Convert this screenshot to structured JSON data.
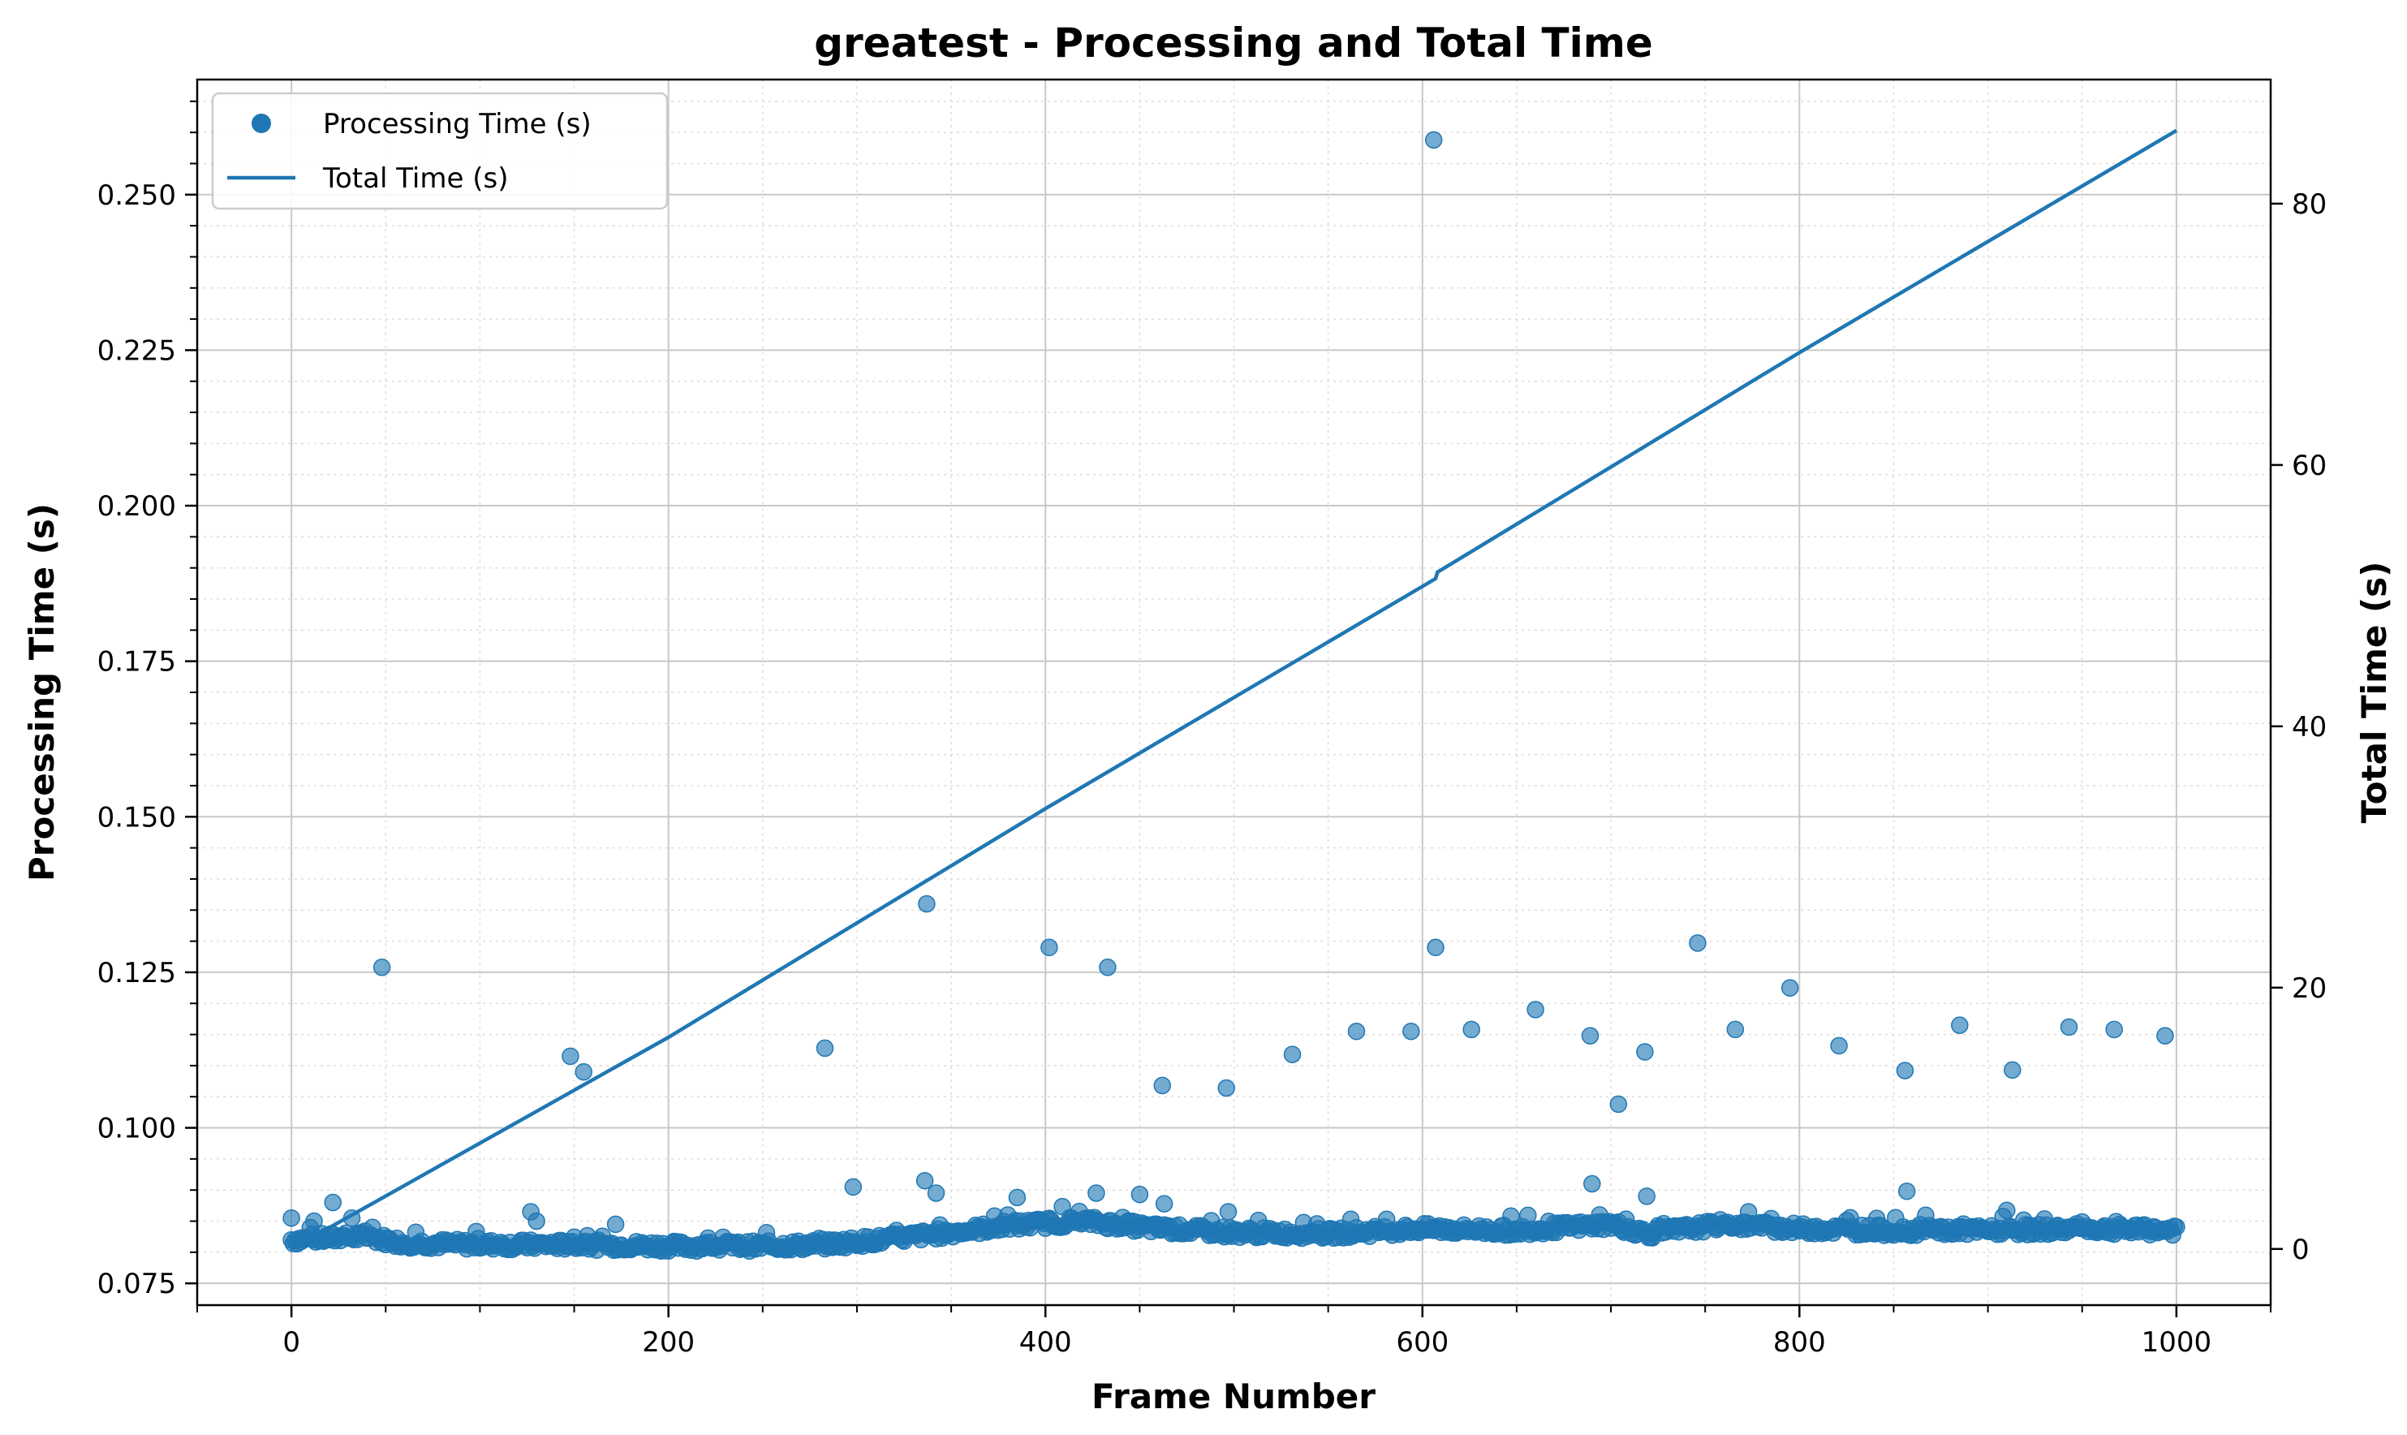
{
  "chart_data": {
    "type": "scatter",
    "title": "greatest - Processing and Total Time",
    "xlabel": "Frame Number",
    "ylabel": "Processing Time (s)",
    "y2label": "Total Time (s)",
    "xlim": [
      -50,
      1050
    ],
    "ylim": [
      0.0715,
      0.2685
    ],
    "y2lim": [
      -4.3,
      89.5
    ],
    "xticks": [
      0,
      200,
      400,
      600,
      800,
      1000
    ],
    "yticks": [
      0.075,
      0.1,
      0.125,
      0.15,
      0.175,
      0.2,
      0.225,
      0.25
    ],
    "y2ticks": [
      0,
      20,
      40,
      60,
      80
    ],
    "ytick_labels": [
      "0.075",
      "0.100",
      "0.125",
      "0.150",
      "0.175",
      "0.200",
      "0.225",
      "0.250"
    ],
    "grid": true,
    "minor_grid": true,
    "legend_position": "top-left",
    "color": "#1f77b4",
    "series": [
      {
        "name": "Processing Time (s)",
        "kind": "scatter",
        "axis": "left",
        "points": [
          [
            0,
            0.0855
          ],
          [
            12,
            0.085
          ],
          [
            22,
            0.088
          ],
          [
            32,
            0.0855
          ],
          [
            48,
            0.1258
          ],
          [
            127,
            0.0865
          ],
          [
            130,
            0.085
          ],
          [
            148,
            0.1115
          ],
          [
            155,
            0.109
          ],
          [
            172,
            0.0845
          ],
          [
            283,
            0.1128
          ],
          [
            298,
            0.0905
          ],
          [
            336,
            0.0915
          ],
          [
            337,
            0.136
          ],
          [
            342,
            0.0895
          ],
          [
            385,
            0.0888
          ],
          [
            402,
            0.129
          ],
          [
            427,
            0.0895
          ],
          [
            433,
            0.1258
          ],
          [
            450,
            0.0893
          ],
          [
            462,
            0.1068
          ],
          [
            463,
            0.0878
          ],
          [
            496,
            0.1064
          ],
          [
            497,
            0.0865
          ],
          [
            531,
            0.1118
          ],
          [
            565,
            0.1155
          ],
          [
            594,
            0.1155
          ],
          [
            606,
            0.2588
          ],
          [
            607,
            0.129
          ],
          [
            626,
            0.1158
          ],
          [
            660,
            0.119
          ],
          [
            689,
            0.1148
          ],
          [
            690,
            0.091
          ],
          [
            704,
            0.1038
          ],
          [
            718,
            0.1122
          ],
          [
            719,
            0.089
          ],
          [
            746,
            0.1297
          ],
          [
            766,
            0.1158
          ],
          [
            795,
            0.1225
          ],
          [
            821,
            0.1132
          ],
          [
            856,
            0.1092
          ],
          [
            857,
            0.0898
          ],
          [
            885,
            0.1165
          ],
          [
            913,
            0.1093
          ],
          [
            943,
            0.1162
          ],
          [
            967,
            0.1158
          ],
          [
            994,
            0.1148
          ]
        ],
        "baseline": [
          [
            0,
            0.082
          ],
          [
            40,
            0.0825
          ],
          [
            60,
            0.0815
          ],
          [
            100,
            0.0812
          ],
          [
            150,
            0.0812
          ],
          [
            200,
            0.081
          ],
          [
            250,
            0.081
          ],
          [
            280,
            0.0812
          ],
          [
            320,
            0.0822
          ],
          [
            350,
            0.0832
          ],
          [
            380,
            0.0843
          ],
          [
            420,
            0.085
          ],
          [
            460,
            0.0838
          ],
          [
            500,
            0.0832
          ],
          [
            550,
            0.083
          ],
          [
            600,
            0.0838
          ],
          [
            650,
            0.0835
          ],
          [
            700,
            0.0845
          ],
          [
            720,
            0.083
          ],
          [
            760,
            0.0845
          ],
          [
            800,
            0.0838
          ],
          [
            850,
            0.0835
          ],
          [
            900,
            0.0835
          ],
          [
            950,
            0.0838
          ],
          [
            1000,
            0.0835
          ]
        ]
      },
      {
        "name": "Total Time (s)",
        "kind": "line",
        "axis": "right",
        "points": [
          [
            0,
            0
          ],
          [
            200,
            16.2
          ],
          [
            400,
            33.7
          ],
          [
            607,
            51.3
          ],
          [
            608,
            51.8
          ],
          [
            800,
            68.6
          ],
          [
            1000,
            85.6
          ]
        ]
      }
    ]
  }
}
